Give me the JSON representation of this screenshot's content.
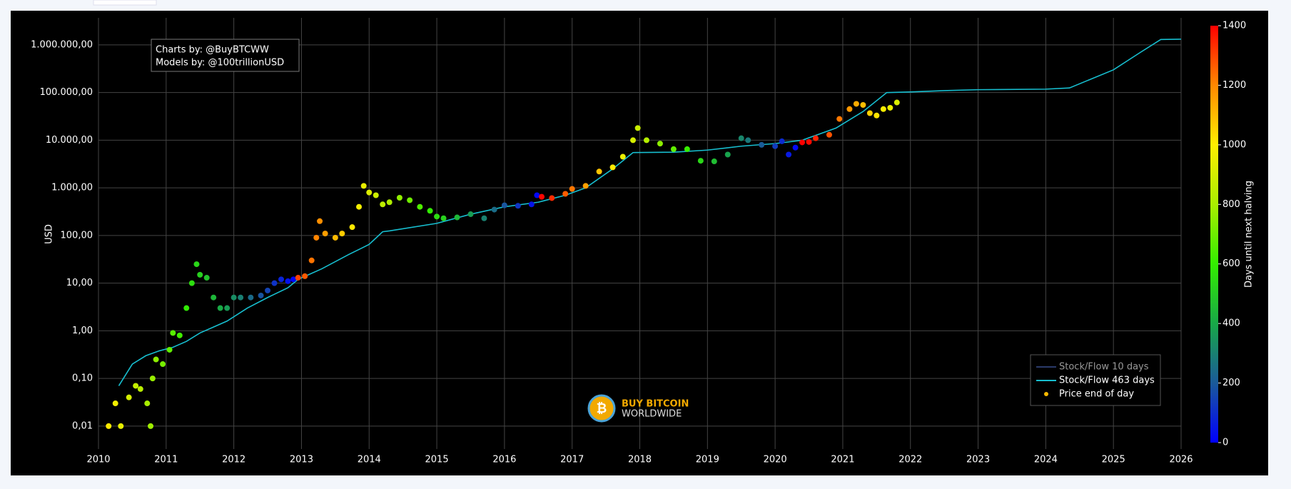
{
  "chart_data": {
    "type": "scatter",
    "y_label": "USD",
    "log_y": true,
    "grid": true,
    "legend_position": "lower right",
    "xlim": [
      2010,
      2026
    ],
    "xticks": [
      2010,
      2011,
      2012,
      2013,
      2014,
      2015,
      2016,
      2017,
      2018,
      2019,
      2020,
      2021,
      2022,
      2023,
      2024,
      2025,
      2026
    ],
    "ylim": [
      0.0033,
      3700000
    ],
    "yticks": [
      {
        "value": 0.01,
        "label": "0,01"
      },
      {
        "value": 0.1,
        "label": "0,10"
      },
      {
        "value": 1,
        "label": "1,00"
      },
      {
        "value": 10,
        "label": "10,00"
      },
      {
        "value": 100,
        "label": "100,00"
      },
      {
        "value": 1000,
        "label": "1.000,00"
      },
      {
        "value": 10000,
        "label": "10.000,00"
      },
      {
        "value": 100000,
        "label": "100.000,00"
      },
      {
        "value": 1000000,
        "label": "1.000.000,00"
      }
    ],
    "annotations": [
      "Charts by: @BuyBTCWW",
      "Models by: @100trillionUSD"
    ],
    "logo": [
      "BUY BITCOIN",
      "WORLDWIDE"
    ],
    "colorbar": {
      "title": "Days until next halving",
      "lim": [
        0,
        1400
      ],
      "ticks": [
        0,
        200,
        400,
        600,
        800,
        1000,
        1200,
        1400
      ],
      "colorscale": [
        "#0000ff",
        "#1a5a9a",
        "#18a848",
        "#33ee00",
        "#aaee00",
        "#ffee00",
        "#ff8800",
        "#ff0000"
      ]
    },
    "series": [
      {
        "name": "Stock/Flow 10 days",
        "mode": "line",
        "color": "#2a3a6a",
        "x": [],
        "values": []
      },
      {
        "name": "Stock/Flow 463 days",
        "mode": "line",
        "color": "#17becf",
        "x": [
          2010.3,
          2010.5,
          2010.7,
          2010.9,
          2011.1,
          2011.3,
          2011.5,
          2011.7,
          2011.9,
          2012.2,
          2012.5,
          2012.8,
          2012.95,
          2013.3,
          2013.7,
          2014.0,
          2014.2,
          2014.3,
          2015.0,
          2015.5,
          2016.0,
          2016.5,
          2016.9,
          2017.2,
          2017.6,
          2017.9,
          2018.5,
          2019.0,
          2019.5,
          2020.0,
          2020.4,
          2020.9,
          2021.3,
          2021.65,
          2022.0,
          2022.5,
          2023.0,
          2024.0,
          2024.35,
          2025.0,
          2025.4,
          2025.7,
          2026.0
        ],
        "values": [
          0.07,
          0.2,
          0.3,
          0.38,
          0.45,
          0.6,
          0.9,
          1.2,
          1.6,
          3,
          5,
          8,
          12,
          20,
          40,
          65,
          120,
          125,
          180,
          280,
          400,
          500,
          700,
          1000,
          2500,
          5500,
          5600,
          6200,
          7500,
          8500,
          10000,
          18000,
          40000,
          100000,
          103000,
          110000,
          115000,
          118000,
          125000,
          300000,
          700000,
          1300000,
          1320000
        ]
      },
      {
        "name": "Price end of day",
        "mode": "markers",
        "color": "#f5b800",
        "x": [
          2010.15,
          2010.25,
          2010.33,
          2010.45,
          2010.55,
          2010.62,
          2010.72,
          2010.77,
          2010.8,
          2010.85,
          2010.95,
          2011.05,
          2011.1,
          2011.2,
          2011.3,
          2011.38,
          2011.45,
          2011.5,
          2011.6,
          2011.7,
          2011.8,
          2011.9,
          2012.0,
          2012.1,
          2012.25,
          2012.4,
          2012.5,
          2012.6,
          2012.7,
          2012.8,
          2012.88,
          2012.95,
          2013.05,
          2013.15,
          2013.22,
          2013.27,
          2013.35,
          2013.5,
          2013.6,
          2013.75,
          2013.85,
          2013.92,
          2014.0,
          2014.1,
          2014.2,
          2014.3,
          2014.45,
          2014.6,
          2014.75,
          2014.9,
          2015.0,
          2015.1,
          2015.3,
          2015.5,
          2015.7,
          2015.85,
          2016.0,
          2016.2,
          2016.4,
          2016.48,
          2016.55,
          2016.7,
          2016.9,
          2017.0,
          2017.2,
          2017.4,
          2017.6,
          2017.75,
          2017.9,
          2017.97,
          2018.1,
          2018.3,
          2018.5,
          2018.7,
          2018.9,
          2019.1,
          2019.3,
          2019.5,
          2019.6,
          2019.8,
          2020.0,
          2020.1,
          2020.2,
          2020.3,
          2020.4,
          2020.5,
          2020.6,
          2020.8,
          2020.95,
          2021.1,
          2021.2,
          2021.3,
          2021.4,
          2021.5,
          2021.6,
          2021.7,
          2021.8
        ],
        "values": [
          0.01,
          0.03,
          0.01,
          0.04,
          0.07,
          0.06,
          0.03,
          0.01,
          0.1,
          0.25,
          0.2,
          0.4,
          0.9,
          0.8,
          3,
          10,
          25,
          15,
          13,
          5,
          3,
          3,
          5,
          5,
          5,
          5.5,
          7,
          10,
          12,
          11,
          12,
          13,
          14,
          30,
          90,
          200,
          110,
          90,
          110,
          150,
          400,
          1100,
          800,
          700,
          450,
          500,
          620,
          550,
          400,
          330,
          250,
          230,
          240,
          280,
          230,
          350,
          430,
          420,
          450,
          700,
          650,
          610,
          750,
          950,
          1100,
          2200,
          2700,
          4500,
          10000,
          18000,
          10000,
          8500,
          6500,
          6500,
          3700,
          3600,
          5000,
          11000,
          10000,
          8000,
          7500,
          9500,
          5000,
          7000,
          9000,
          9200,
          11000,
          13000,
          28000,
          45000,
          58000,
          55000,
          37000,
          33000,
          45000,
          48000,
          62000
        ],
        "color_values": [
          1007,
          971,
          942,
          898,
          861,
          836,
          799,
          781,
          770,
          752,
          715,
          679,
          661,
          624,
          588,
          558,
          533,
          515,
          478,
          442,
          405,
          369,
          332,
          296,
          241,
          186,
          150,
          113,
          77,
          40,
          11,
          1303,
          1267,
          1230,
          1205,
          1186,
          1157,
          1102,
          1066,
          1011,
          975,
          949,
          920,
          883,
          847,
          810,
          756,
          701,
          646,
          591,
          555,
          518,
          445,
          372,
          299,
          245,
          190,
          117,
          44,
          15,
          1391,
          1336,
          1263,
          1226,
          1153,
          1080,
          1007,
          953,
          898,
          872,
          825,
          752,
          679,
          606,
          533,
          460,
          387,
          314,
          277,
          204,
          131,
          95,
          58,
          22,
          1424,
          1387,
          1351,
          1278,
          1223,
          1168,
          1132,
          1095,
          1059,
          1022,
          986,
          949,
          913
        ]
      }
    ]
  }
}
